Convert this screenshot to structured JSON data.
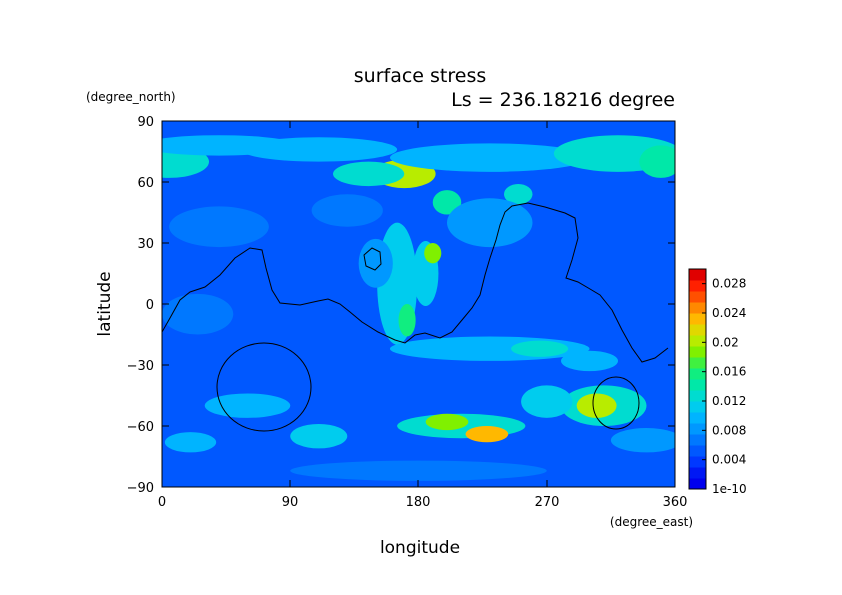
{
  "chart_data": {
    "type": "heatmap",
    "title": "surface stress",
    "subtitle": "Ls = 236.18216 degree",
    "xlabel": "longitude",
    "ylabel": "latitude",
    "x_unit": "(degree_east)",
    "y_unit": "(degree_north)",
    "xlim": [
      0,
      360
    ],
    "ylim": [
      -90,
      90
    ],
    "x_ticks": [
      "0",
      "90",
      "180",
      "270",
      "360"
    ],
    "y_ticks": [
      "90",
      "60",
      "30",
      "0",
      "−30",
      "−60",
      "−90"
    ],
    "colorbar": {
      "min": 0,
      "max": 0.03,
      "tick_labels": [
        "1e-10",
        "0.004",
        "0.008",
        "0.012",
        "0.016",
        "0.02",
        "0.024",
        "0.028"
      ],
      "tick_values": [
        0,
        0.004,
        0.008,
        0.012,
        0.016,
        0.02,
        0.024,
        0.028
      ],
      "colors": [
        "#0000ee",
        "#0018f4",
        "#0038ff",
        "#0058ff",
        "#0078ff",
        "#0098ff",
        "#00b4ff",
        "#00ccee",
        "#00dcd0",
        "#00e8a8",
        "#10ee80",
        "#40f040",
        "#80f000",
        "#b8ec00",
        "#e0d800",
        "#ffb800",
        "#ff8800",
        "#ff5000",
        "#ff2000",
        "#e00000"
      ]
    },
    "background_value": 0.0045,
    "features": [
      {
        "lon": 5,
        "lat": 70,
        "rlon": 28,
        "rlat": 8,
        "value": 0.013
      },
      {
        "lon": 40,
        "lat": 78,
        "rlon": 55,
        "rlat": 5,
        "value": 0.009
      },
      {
        "lon": 110,
        "lat": 76,
        "rlon": 55,
        "rlat": 6,
        "value": 0.009
      },
      {
        "lon": 170,
        "lat": 64,
        "rlon": 22,
        "rlat": 7,
        "value": 0.02
      },
      {
        "lon": 145,
        "lat": 64,
        "rlon": 25,
        "rlat": 6,
        "value": 0.012
      },
      {
        "lon": 230,
        "lat": 72,
        "rlon": 70,
        "rlat": 7,
        "value": 0.01
      },
      {
        "lon": 320,
        "lat": 74,
        "rlon": 45,
        "rlat": 9,
        "value": 0.012
      },
      {
        "lon": 350,
        "lat": 70,
        "rlon": 15,
        "rlat": 8,
        "value": 0.014
      },
      {
        "lon": 200,
        "lat": 50,
        "rlon": 10,
        "rlat": 6,
        "value": 0.014
      },
      {
        "lon": 250,
        "lat": 54,
        "rlon": 10,
        "rlat": 5,
        "value": 0.012
      },
      {
        "lon": 230,
        "lat": 40,
        "rlon": 30,
        "rlat": 12,
        "value": 0.008
      },
      {
        "lon": 40,
        "lat": 38,
        "rlon": 35,
        "rlat": 10,
        "value": 0.007
      },
      {
        "lon": 130,
        "lat": 46,
        "rlon": 25,
        "rlat": 8,
        "value": 0.007
      },
      {
        "lon": 165,
        "lat": 10,
        "rlon": 14,
        "rlat": 30,
        "value": 0.011
      },
      {
        "lon": 185,
        "lat": 15,
        "rlon": 9,
        "rlat": 16,
        "value": 0.011
      },
      {
        "lon": 190,
        "lat": 25,
        "rlon": 6,
        "rlat": 5,
        "value": 0.018
      },
      {
        "lon": 172,
        "lat": -8,
        "rlon": 6,
        "rlat": 8,
        "value": 0.016
      },
      {
        "lon": 150,
        "lat": 20,
        "rlon": 12,
        "rlat": 12,
        "value": 0.008
      },
      {
        "lon": 230,
        "lat": -22,
        "rlon": 70,
        "rlat": 6,
        "value": 0.009
      },
      {
        "lon": 265,
        "lat": -22,
        "rlon": 20,
        "rlat": 4,
        "value": 0.013
      },
      {
        "lon": 300,
        "lat": -28,
        "rlon": 20,
        "rlat": 5,
        "value": 0.009
      },
      {
        "lon": 60,
        "lat": -50,
        "rlon": 30,
        "rlat": 6,
        "value": 0.009
      },
      {
        "lon": 25,
        "lat": -5,
        "rlon": 25,
        "rlat": 10,
        "value": 0.007
      },
      {
        "lon": 310,
        "lat": -50,
        "rlon": 30,
        "rlat": 10,
        "value": 0.012
      },
      {
        "lon": 305,
        "lat": -50,
        "rlon": 14,
        "rlat": 6,
        "value": 0.02
      },
      {
        "lon": 270,
        "lat": -48,
        "rlon": 18,
        "rlat": 8,
        "value": 0.011
      },
      {
        "lon": 210,
        "lat": -60,
        "rlon": 45,
        "rlat": 6,
        "value": 0.012
      },
      {
        "lon": 200,
        "lat": -58,
        "rlon": 15,
        "rlat": 4,
        "value": 0.018
      },
      {
        "lon": 228,
        "lat": -64,
        "rlon": 15,
        "rlat": 4,
        "value": 0.023
      },
      {
        "lon": 110,
        "lat": -65,
        "rlon": 20,
        "rlat": 6,
        "value": 0.011
      },
      {
        "lon": 20,
        "lat": -68,
        "rlon": 18,
        "rlat": 5,
        "value": 0.009
      },
      {
        "lon": 340,
        "lat": -67,
        "rlon": 25,
        "rlat": 6,
        "value": 0.008
      },
      {
        "lon": 180,
        "lat": -82,
        "rlon": 90,
        "rlat": 5,
        "value": 0.006
      }
    ]
  }
}
